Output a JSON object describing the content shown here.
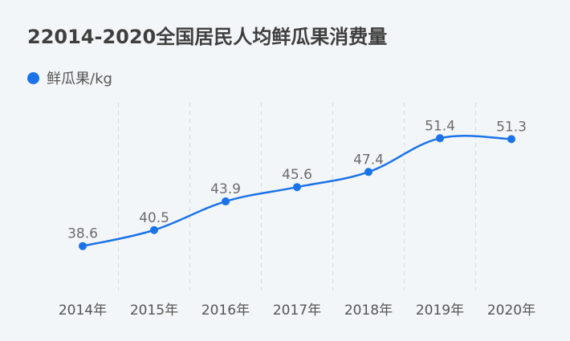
{
  "chart_data": {
    "type": "line",
    "title": "22014-2020全国居民人均鲜瓜果消费量",
    "categories": [
      "2014年",
      "2015年",
      "2016年",
      "2017年",
      "2018年",
      "2019年",
      "2020年"
    ],
    "series": [
      {
        "name": "鲜瓜果/kg",
        "values": [
          38.6,
          40.5,
          43.9,
          45.6,
          47.4,
          51.4,
          51.3
        ]
      }
    ],
    "xlabel": "",
    "ylabel": "",
    "ylim": [
      34,
      54
    ],
    "grid": "vertical-dashed",
    "legend_position": "top-left",
    "smooth": true,
    "colors": {
      "line": "#1a73e8",
      "grid": "#d5d9dd",
      "background": "#f3f6f8"
    }
  }
}
